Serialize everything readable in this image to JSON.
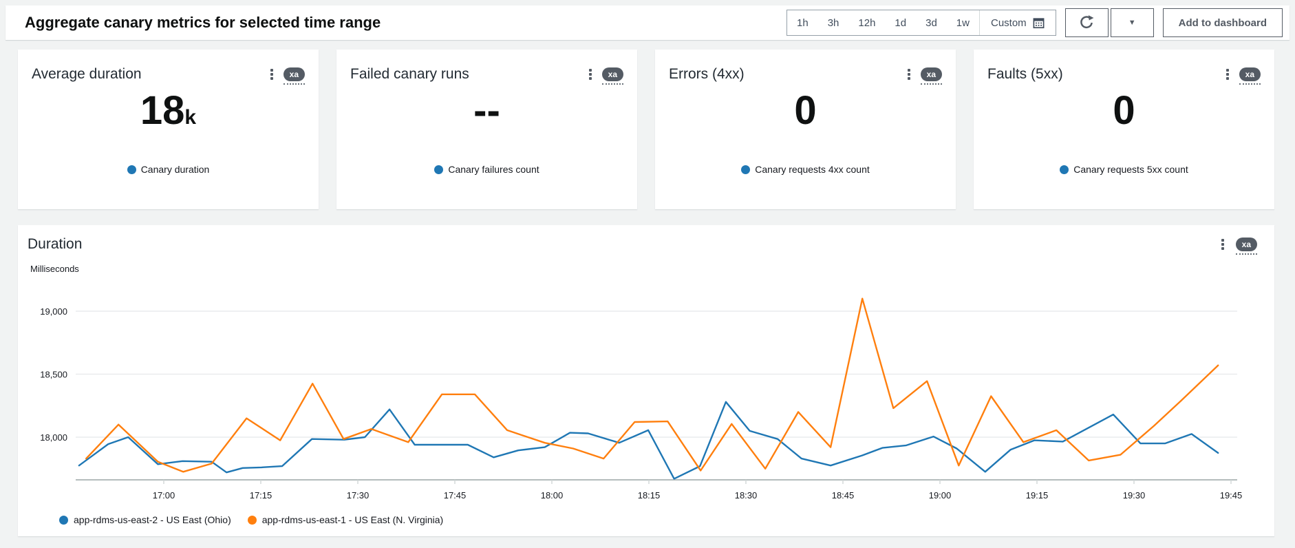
{
  "header": {
    "title": "Aggregate canary metrics for selected time range",
    "time_ranges": [
      "1h",
      "3h",
      "12h",
      "1d",
      "3d",
      "1w"
    ],
    "custom_label": "Custom",
    "add_to_dashboard_label": "Add to dashboard",
    "icons": [
      "calendar-grid-icon",
      "refresh-icon",
      "caret-down-icon"
    ]
  },
  "badge_label": "xa",
  "cards": [
    {
      "title": "Average duration",
      "value": "18",
      "value_suffix": "k",
      "legend": "Canary duration",
      "legend_color": "#1f77b4"
    },
    {
      "title": "Failed canary runs",
      "value": "--",
      "value_suffix": "",
      "legend": "Canary failures count",
      "legend_color": "#1f77b4"
    },
    {
      "title": "Errors (4xx)",
      "value": "0",
      "value_suffix": "",
      "legend": "Canary requests 4xx count",
      "legend_color": "#1f77b4"
    },
    {
      "title": "Faults (5xx)",
      "value": "0",
      "value_suffix": "",
      "legend": "Canary requests 5xx count",
      "legend_color": "#1f77b4"
    }
  ],
  "chart_panel": {
    "title": "Duration",
    "y_axis_label": "Milliseconds"
  },
  "chart_data": {
    "type": "line",
    "title": "Duration",
    "ylabel": "Milliseconds",
    "grid": "horizontal",
    "legend_position": "bottom",
    "y_ticks": [
      19000,
      18500,
      18000
    ],
    "y_tick_labels": [
      "19,000",
      "18,500",
      "18,000"
    ],
    "ylim": [
      17660,
      19180
    ],
    "x_tick_labels": [
      "17:00",
      "17:15",
      "17:30",
      "17:45",
      "18:00",
      "18:15",
      "18:30",
      "18:45",
      "19:00",
      "19:15",
      "19:30",
      "19:45"
    ],
    "x_unit": "minutes relative to 17:00",
    "x_domain_minutes": [
      -14,
      166
    ],
    "series": [
      {
        "name": "app-rdms-us-east-2 - US East (Ohio)",
        "color": "#1f77b4",
        "points": [
          [
            -13.1,
            17775
          ],
          [
            -8.6,
            17945
          ],
          [
            -5.5,
            18000
          ],
          [
            -0.9,
            17785
          ],
          [
            2.9,
            17810
          ],
          [
            7.4,
            17805
          ],
          [
            9.7,
            17720
          ],
          [
            12.2,
            17755
          ],
          [
            15.1,
            17760
          ],
          [
            18.3,
            17770
          ],
          [
            22.9,
            17985
          ],
          [
            27.9,
            17980
          ],
          [
            31.1,
            18000
          ],
          [
            34.9,
            18220
          ],
          [
            38.8,
            17940
          ],
          [
            47,
            17940
          ],
          [
            51,
            17840
          ],
          [
            54.8,
            17895
          ],
          [
            58.9,
            17920
          ],
          [
            62.8,
            18035
          ],
          [
            65.6,
            18030
          ],
          [
            70.4,
            17955
          ],
          [
            74.9,
            18055
          ],
          [
            78.9,
            17670
          ],
          [
            82.9,
            17770
          ],
          [
            86.9,
            18280
          ],
          [
            90.6,
            18050
          ],
          [
            94.9,
            17985
          ],
          [
            98.6,
            17830
          ],
          [
            103.1,
            17775
          ],
          [
            108,
            17855
          ],
          [
            111.1,
            17915
          ],
          [
            114.8,
            17935
          ],
          [
            119,
            18005
          ],
          [
            122.6,
            17910
          ],
          [
            127,
            17725
          ],
          [
            130.9,
            17900
          ],
          [
            134.6,
            17975
          ],
          [
            139,
            17965
          ],
          [
            146.8,
            18180
          ],
          [
            151,
            17950
          ],
          [
            154.8,
            17950
          ],
          [
            158.9,
            18025
          ],
          [
            163,
            17875
          ]
        ]
      },
      {
        "name": "app-rdms-us-east-1 - US East (N. Virginia)",
        "color": "#ff7f0e",
        "points": [
          [
            -12,
            17830
          ],
          [
            -7,
            18100
          ],
          [
            -0.9,
            17805
          ],
          [
            3,
            17725
          ],
          [
            7.4,
            17790
          ],
          [
            12.8,
            18150
          ],
          [
            18,
            17975
          ],
          [
            23,
            18425
          ],
          [
            27.8,
            17985
          ],
          [
            32.1,
            18065
          ],
          [
            37.8,
            17960
          ],
          [
            43,
            18340
          ],
          [
            48.1,
            18340
          ],
          [
            53.1,
            18055
          ],
          [
            58.9,
            17955
          ],
          [
            63.3,
            17910
          ],
          [
            68,
            17830
          ],
          [
            72.8,
            18120
          ],
          [
            77.9,
            18125
          ],
          [
            83,
            17735
          ],
          [
            87.8,
            18105
          ],
          [
            93,
            17750
          ],
          [
            98.1,
            18200
          ],
          [
            103.1,
            17920
          ],
          [
            108,
            19100
          ],
          [
            112.8,
            18230
          ],
          [
            118,
            18445
          ],
          [
            122.9,
            17775
          ],
          [
            127.9,
            18325
          ],
          [
            132.9,
            17960
          ],
          [
            138,
            18055
          ],
          [
            143,
            17815
          ],
          [
            147.9,
            17860
          ],
          [
            153.1,
            18090
          ],
          [
            157.3,
            18290
          ],
          [
            163,
            18570
          ]
        ]
      }
    ]
  }
}
